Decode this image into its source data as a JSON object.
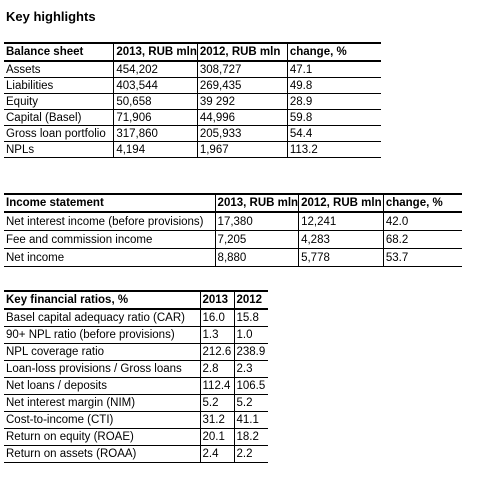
{
  "title": "Key highlights",
  "balance": {
    "headers": [
      "Balance sheet",
      "2013, RUB mln",
      "2012, RUB mln",
      "change, %"
    ],
    "rows": [
      [
        "Assets",
        "454,202",
        "308,727",
        "47.1"
      ],
      [
        "Liabilities",
        "403,544",
        "269,435",
        "49.8"
      ],
      [
        "Equity",
        "50,658",
        "39 292",
        "28.9"
      ],
      [
        "Capital (Basel)",
        "71,906",
        "44,996",
        "59.8"
      ],
      [
        "Gross loan portfolio",
        "317,860",
        "205,933",
        "54.4"
      ],
      [
        "NPLs",
        "4,194",
        "1,967",
        "113.2"
      ]
    ]
  },
  "income": {
    "headers": [
      "Income statement",
      "2013, RUB mln",
      "2012, RUB mln",
      "change, %"
    ],
    "rows": [
      [
        "Net interest income (before provisions)",
        "17,380",
        "12,241",
        "42.0"
      ],
      [
        "Fee and commission income",
        "7,205",
        "4,283",
        "68.2"
      ],
      [
        "Net income",
        "8,880",
        "5,778",
        "53.7"
      ]
    ]
  },
  "ratios": {
    "headers": [
      "Key financial ratios, %",
      "2013",
      "2012"
    ],
    "rows": [
      [
        "Basel capital adequacy ratio (CAR)",
        "16.0",
        "15.8"
      ],
      [
        "90+ NPL ratio (before provisions)",
        "1.3",
        "1.0"
      ],
      [
        "NPL coverage ratio",
        "212.6",
        "238.9"
      ],
      [
        "Loan-loss provisions / Gross loans",
        "2.8",
        "2.3"
      ],
      [
        "Net loans / deposits",
        "112.4",
        "106.5"
      ],
      [
        "Net interest margin (NIM)",
        "5.2",
        "5.2"
      ],
      [
        "Cost-to-income (CTI)",
        "31.2",
        "41.1"
      ],
      [
        "Return on equity (ROAE)",
        "20.1",
        "18.2"
      ],
      [
        "Return on assets (ROAA)",
        "2.4",
        "2.2"
      ]
    ]
  }
}
